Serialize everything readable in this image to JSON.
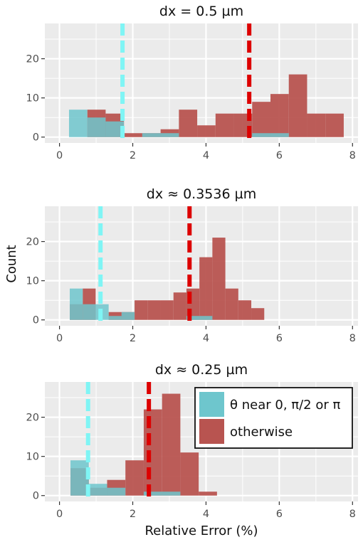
{
  "chart_data": [
    {
      "type": "histogram",
      "title": "dx = 0.5 µm",
      "xlim": [
        -0.4,
        8.15
      ],
      "ylim": [
        -1.5,
        29
      ],
      "xticks": [
        "0",
        "2",
        "4",
        "6",
        "8"
      ],
      "yticks": [
        "0",
        "10",
        "20"
      ],
      "bin_width": 0.5,
      "series": [
        {
          "name": "θ near 0, π/2 or π",
          "color": "#6ec6cd",
          "bins": [
            {
              "x0": 0.26,
              "count": 7
            },
            {
              "x0": 0.76,
              "count": 5
            },
            {
              "x0": 1.26,
              "count": 4
            },
            {
              "x0": 1.76,
              "count": 0
            },
            {
              "x0": 2.26,
              "count": 1
            },
            {
              "x0": 2.76,
              "count": 1
            },
            {
              "x0": 3.26,
              "count": 0
            },
            {
              "x0": 3.76,
              "count": 0
            },
            {
              "x0": 4.26,
              "count": 0
            },
            {
              "x0": 4.76,
              "count": 0
            },
            {
              "x0": 5.26,
              "count": 1
            },
            {
              "x0": 5.76,
              "count": 1
            },
            {
              "x0": 6.26,
              "count": 0
            },
            {
              "x0": 6.76,
              "count": 0
            },
            {
              "x0": 7.26,
              "count": 0
            }
          ]
        },
        {
          "name": "otherwise",
          "color": "#b85450",
          "bins": [
            {
              "x0": 0.26,
              "count": 0
            },
            {
              "x0": 0.76,
              "count": 7
            },
            {
              "x0": 1.26,
              "count": 6
            },
            {
              "x0": 1.76,
              "count": 1
            },
            {
              "x0": 2.26,
              "count": 1
            },
            {
              "x0": 2.76,
              "count": 2
            },
            {
              "x0": 3.26,
              "count": 7
            },
            {
              "x0": 3.76,
              "count": 3
            },
            {
              "x0": 4.26,
              "count": 6
            },
            {
              "x0": 4.76,
              "count": 6
            },
            {
              "x0": 5.26,
              "count": 9
            },
            {
              "x0": 5.76,
              "count": 11
            },
            {
              "x0": 6.26,
              "count": 16
            },
            {
              "x0": 6.76,
              "count": 6
            },
            {
              "x0": 7.26,
              "count": 6
            }
          ]
        }
      ],
      "vlines": [
        {
          "x": 1.72,
          "color": "#7ff5f5"
        },
        {
          "x": 5.18,
          "color": "#dd0000"
        }
      ]
    },
    {
      "type": "histogram",
      "title": "dx ≈ 0.3536 µm",
      "xlim": [
        -0.4,
        8.15
      ],
      "ylim": [
        -1.5,
        29
      ],
      "xticks": [
        "0",
        "2",
        "4",
        "6",
        "8"
      ],
      "yticks": [
        "0",
        "10",
        "20"
      ],
      "bin_width": 0.354,
      "series": [
        {
          "name": "θ near 0, π/2 or π",
          "color": "#6ec6cd",
          "bins": [
            {
              "x0": 0.28,
              "count": 8
            },
            {
              "x0": 0.634,
              "count": 4
            },
            {
              "x0": 0.988,
              "count": 4
            },
            {
              "x0": 1.342,
              "count": 1
            },
            {
              "x0": 1.696,
              "count": 2
            },
            {
              "x0": 2.05,
              "count": 0
            },
            {
              "x0": 2.404,
              "count": 0
            },
            {
              "x0": 2.758,
              "count": 0
            },
            {
              "x0": 3.112,
              "count": 0
            },
            {
              "x0": 3.466,
              "count": 1
            },
            {
              "x0": 3.82,
              "count": 1
            },
            {
              "x0": 4.174,
              "count": 0
            },
            {
              "x0": 4.528,
              "count": 0
            },
            {
              "x0": 4.882,
              "count": 0
            },
            {
              "x0": 5.236,
              "count": 0
            }
          ]
        },
        {
          "name": "otherwise",
          "color": "#b85450",
          "bins": [
            {
              "x0": 0.28,
              "count": 4
            },
            {
              "x0": 0.634,
              "count": 8
            },
            {
              "x0": 0.988,
              "count": 0
            },
            {
              "x0": 1.342,
              "count": 2
            },
            {
              "x0": 1.696,
              "count": 2
            },
            {
              "x0": 2.05,
              "count": 5
            },
            {
              "x0": 2.404,
              "count": 5
            },
            {
              "x0": 2.758,
              "count": 5
            },
            {
              "x0": 3.112,
              "count": 7
            },
            {
              "x0": 3.466,
              "count": 8
            },
            {
              "x0": 3.82,
              "count": 16
            },
            {
              "x0": 4.174,
              "count": 21
            },
            {
              "x0": 4.528,
              "count": 8
            },
            {
              "x0": 4.882,
              "count": 5
            },
            {
              "x0": 5.236,
              "count": 3
            }
          ]
        }
      ],
      "vlines": [
        {
          "x": 1.12,
          "color": "#7ff5f5"
        },
        {
          "x": 3.55,
          "color": "#dd0000"
        }
      ]
    },
    {
      "type": "histogram",
      "title": "dx ≈ 0.25 µm",
      "xlim": [
        -0.4,
        8.15
      ],
      "ylim": [
        -1.5,
        29
      ],
      "xticks": [
        "0",
        "2",
        "4",
        "6",
        "8"
      ],
      "yticks": [
        "0",
        "10",
        "20"
      ],
      "bin_width": 0.5,
      "series": [
        {
          "name": "θ near 0, π/2 or π",
          "color": "#6ec6cd",
          "bins": [
            {
              "x0": 0.3,
              "count": 9
            },
            {
              "x0": 0.8,
              "count": 3
            },
            {
              "x0": 1.3,
              "count": 2
            },
            {
              "x0": 1.8,
              "count": 0
            },
            {
              "x0": 2.3,
              "count": 1
            },
            {
              "x0": 2.8,
              "count": 1
            },
            {
              "x0": 3.3,
              "count": 0
            },
            {
              "x0": 3.8,
              "count": 0
            }
          ]
        },
        {
          "name": "otherwise",
          "color": "#b85450",
          "bins": [
            {
              "x0": 0.3,
              "count": 7
            },
            {
              "x0": 0.8,
              "count": 2
            },
            {
              "x0": 1.3,
              "count": 4
            },
            {
              "x0": 1.8,
              "count": 9
            },
            {
              "x0": 2.3,
              "count": 22
            },
            {
              "x0": 2.8,
              "count": 26
            },
            {
              "x0": 3.3,
              "count": 11
            },
            {
              "x0": 3.8,
              "count": 1
            }
          ]
        }
      ],
      "vlines": [
        {
          "x": 0.78,
          "color": "#7ff5f5"
        },
        {
          "x": 2.44,
          "color": "#dd0000"
        }
      ]
    }
  ],
  "axes": {
    "ylabel": "Count",
    "xlabel": "Relative Error (%)"
  },
  "legend": {
    "position": "top-right of bottom panel",
    "items": [
      {
        "label": "θ near 0, π/2 or π",
        "color": "#6ec6cd"
      },
      {
        "label": "otherwise",
        "color": "#b85450"
      }
    ]
  },
  "colors": {
    "panel_background": "#ebebeb",
    "grid": "#ffffff",
    "cyan_fill": "#6ec6cd",
    "red_fill": "#b85450",
    "cyan_line": "#7ff5f5",
    "red_line": "#dd0000"
  }
}
